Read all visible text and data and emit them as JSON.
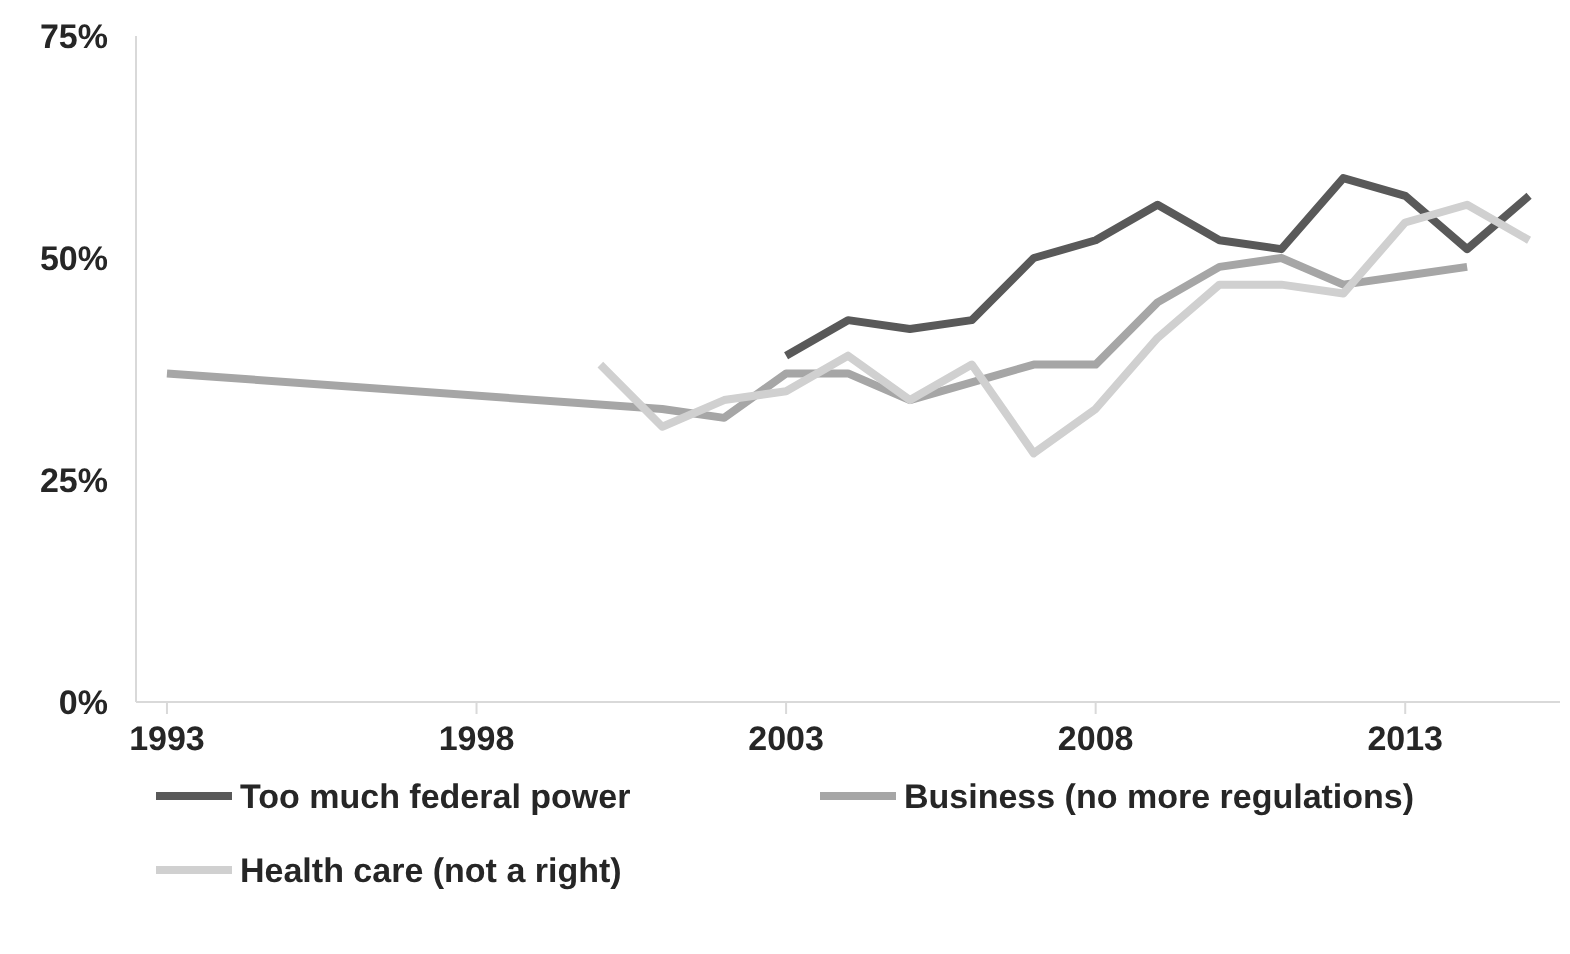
{
  "chart_data": {
    "type": "line",
    "xlim": [
      1992.5,
      2015.5
    ],
    "xticks": [
      1993,
      1998,
      2003,
      2008,
      2013
    ],
    "ylim": [
      0,
      75
    ],
    "yticks": [
      {
        "value": 0,
        "label": "0%"
      },
      {
        "value": 25,
        "label": "25%"
      },
      {
        "value": 50,
        "label": "50%"
      },
      {
        "value": 75,
        "label": "75%"
      }
    ],
    "grid": false,
    "legend": "bottom",
    "marker": "none",
    "line_style": "solid",
    "series": [
      {
        "name": "Too much federal power",
        "color": "#595959",
        "x": [
          2003,
          2004,
          2005,
          2006,
          2007,
          2008,
          2009,
          2010,
          2011,
          2012,
          2013,
          2014,
          2015
        ],
        "values": [
          39,
          43,
          42,
          43,
          50,
          52,
          56,
          52,
          51,
          59,
          57,
          51,
          57
        ]
      },
      {
        "name": "Business (no more regulations)",
        "color": "#a6a6a6",
        "x": [
          1993,
          2001,
          2002,
          2003,
          2004,
          2005,
          2006,
          2007,
          2008,
          2009,
          2010,
          2011,
          2012,
          2013,
          2014
        ],
        "values": [
          37,
          33,
          32,
          37,
          37,
          34,
          36,
          38,
          38,
          45,
          49,
          50,
          47,
          48,
          49
        ]
      },
      {
        "name": "Health care (not a right)",
        "color": "#d0d0d0",
        "x": [
          2000,
          2001,
          2002,
          2003,
          2004,
          2005,
          2006,
          2007,
          2008,
          2009,
          2010,
          2011,
          2012,
          2013,
          2014,
          2015
        ],
        "values": [
          38,
          31,
          34,
          35,
          39,
          34,
          38,
          28,
          33,
          41,
          47,
          47,
          46,
          54,
          56,
          52
        ]
      }
    ]
  }
}
